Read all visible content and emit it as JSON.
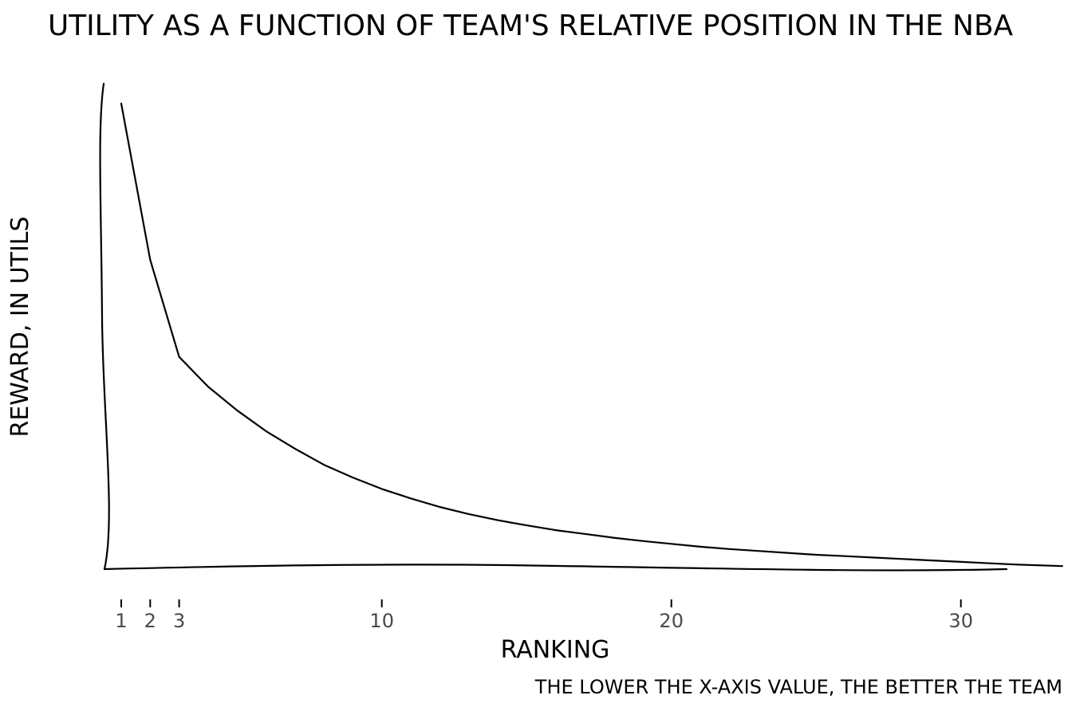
{
  "chart_data": {
    "type": "line",
    "title": "UTILITY AS A FUNCTION OF TEAM'S RELATIVE POSITION IN THE NBA",
    "xlabel": "RANKING",
    "ylabel": "REWARD, IN UTILS",
    "caption": "THE LOWER THE X-AXIS VALUE, THE BETTER THE TEAM",
    "x_ticks": [
      1,
      2,
      3,
      10,
      20,
      30
    ],
    "xlim": [
      0.5,
      33.5
    ],
    "ylim": [
      0,
      100
    ],
    "grid": false,
    "series": [
      {
        "x": [
          1,
          2,
          3,
          4,
          5,
          6,
          7,
          8,
          9,
          10,
          11,
          12,
          13,
          14,
          15,
          16,
          17,
          18,
          19,
          20,
          21,
          22,
          23,
          24,
          25,
          26,
          27,
          28,
          29,
          30,
          31,
          32,
          33.5
        ],
        "values": [
          98,
          65,
          44.5,
          38.2,
          33.2,
          28.8,
          25.1,
          21.7,
          19.0,
          16.6,
          14.6,
          12.8,
          11.3,
          10.0,
          8.9,
          7.9,
          7.1,
          6.3,
          5.6,
          5.0,
          4.4,
          3.9,
          3.5,
          3.1,
          2.7,
          2.4,
          2.1,
          1.8,
          1.5,
          1.2,
          0.9,
          0.6,
          0.3
        ]
      }
    ],
    "color": "#000000"
  }
}
